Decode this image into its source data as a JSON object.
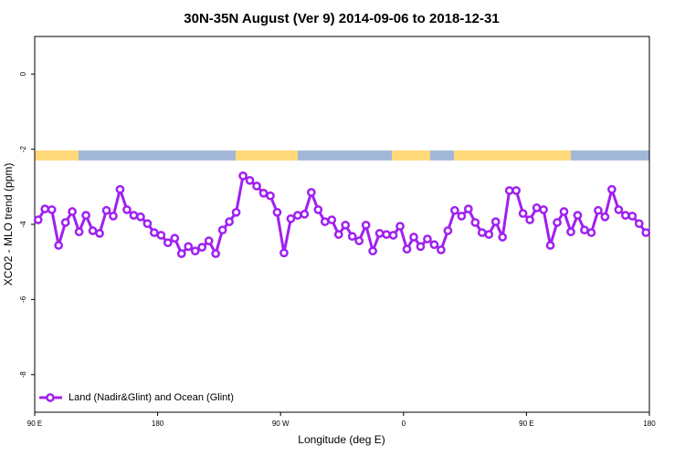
{
  "chart_data": {
    "type": "line",
    "title": "30N-35N August (Ver 9)   2014-09-06 to 2018-12-31",
    "x_label": "Longitude (deg E)",
    "y_label": "XCO2 - MLO trend (ppm)",
    "xlim": [
      90,
      540
    ],
    "xticks": [
      {
        "value": 90,
        "label": "90 E"
      },
      180,
      {
        "value": 270,
        "label": "90 W"
      },
      {
        "value": 360,
        "label": "0"
      },
      {
        "value": 450,
        "label": "90 E"
      },
      {
        "value": 540,
        "label": "180"
      }
    ],
    "ylim": [
      -9,
      1
    ],
    "yticks": [
      0,
      -2,
      -4,
      -6,
      -8
    ],
    "legend_position": "bottom-left",
    "series": [
      {
        "name": "Land (Nadir&Glint) and Ocean (Glint)",
        "color": "#a020f0",
        "x": [
          92.5,
          97.5,
          102.5,
          107.5,
          112.5,
          117.5,
          122.5,
          127.5,
          132.5,
          137.5,
          142.5,
          147.5,
          152.5,
          157.5,
          162.5,
          167.5,
          172.5,
          177.5,
          182.5,
          187.5,
          192.5,
          197.5,
          202.5,
          207.5,
          212.5,
          217.5,
          222.5,
          227.5,
          232.5,
          237.5,
          242.5,
          247.5,
          252.5,
          257.5,
          262.5,
          267.5,
          272.5,
          277.5,
          282.5,
          287.5,
          292.5,
          297.5,
          302.5,
          307.5,
          312.5,
          317.5,
          322.5,
          327.5,
          332.5,
          337.5,
          342.5,
          347.5,
          352.5,
          357.5,
          362.5,
          367.5,
          372.5,
          377.5,
          382.5,
          387.5,
          392.5,
          397.5,
          402.5,
          407.5,
          412.5,
          417.5,
          422.5,
          427.5,
          432.5,
          437.5,
          442.5,
          447.5,
          452.5,
          457.5,
          462.5,
          467.5,
          472.5,
          477.5,
          482.5,
          487.5,
          492.5,
          497.5,
          502.5,
          507.5,
          512.5,
          517.5,
          522.5,
          527.5,
          532.5,
          537.5
        ],
        "values": [
          -3.88,
          -3.59,
          -3.61,
          -4.56,
          -3.95,
          -3.66,
          -4.2,
          -3.76,
          -4.17,
          -4.24,
          -3.63,
          -3.78,
          -3.07,
          -3.61,
          -3.76,
          -3.8,
          -3.98,
          -4.22,
          -4.29,
          -4.49,
          -4.37,
          -4.78,
          -4.59,
          -4.71,
          -4.61,
          -4.44,
          -4.78,
          -4.15,
          -3.93,
          -3.68,
          -2.71,
          -2.83,
          -2.98,
          -3.17,
          -3.24,
          -3.68,
          -4.76,
          -3.85,
          -3.76,
          -3.73,
          -3.15,
          -3.61,
          -3.93,
          -3.88,
          -4.27,
          -4.02,
          -4.32,
          -4.44,
          -4.02,
          -4.71,
          -4.24,
          -4.27,
          -4.29,
          -4.05,
          -4.66,
          -4.34,
          -4.59,
          -4.39,
          -4.54,
          -4.68,
          -4.17,
          -3.63,
          -3.78,
          -3.59,
          -3.95,
          -4.22,
          -4.27,
          -3.93,
          -4.34,
          -3.1,
          -3.1,
          -3.71,
          -3.88,
          -3.56,
          -3.61,
          -4.56,
          -3.95,
          -3.66,
          -4.2,
          -3.76,
          -4.15,
          -4.22,
          -3.63,
          -3.8,
          -3.07,
          -3.61,
          -3.76,
          -3.78,
          -3.98,
          -4.22
        ]
      }
    ]
  }
}
